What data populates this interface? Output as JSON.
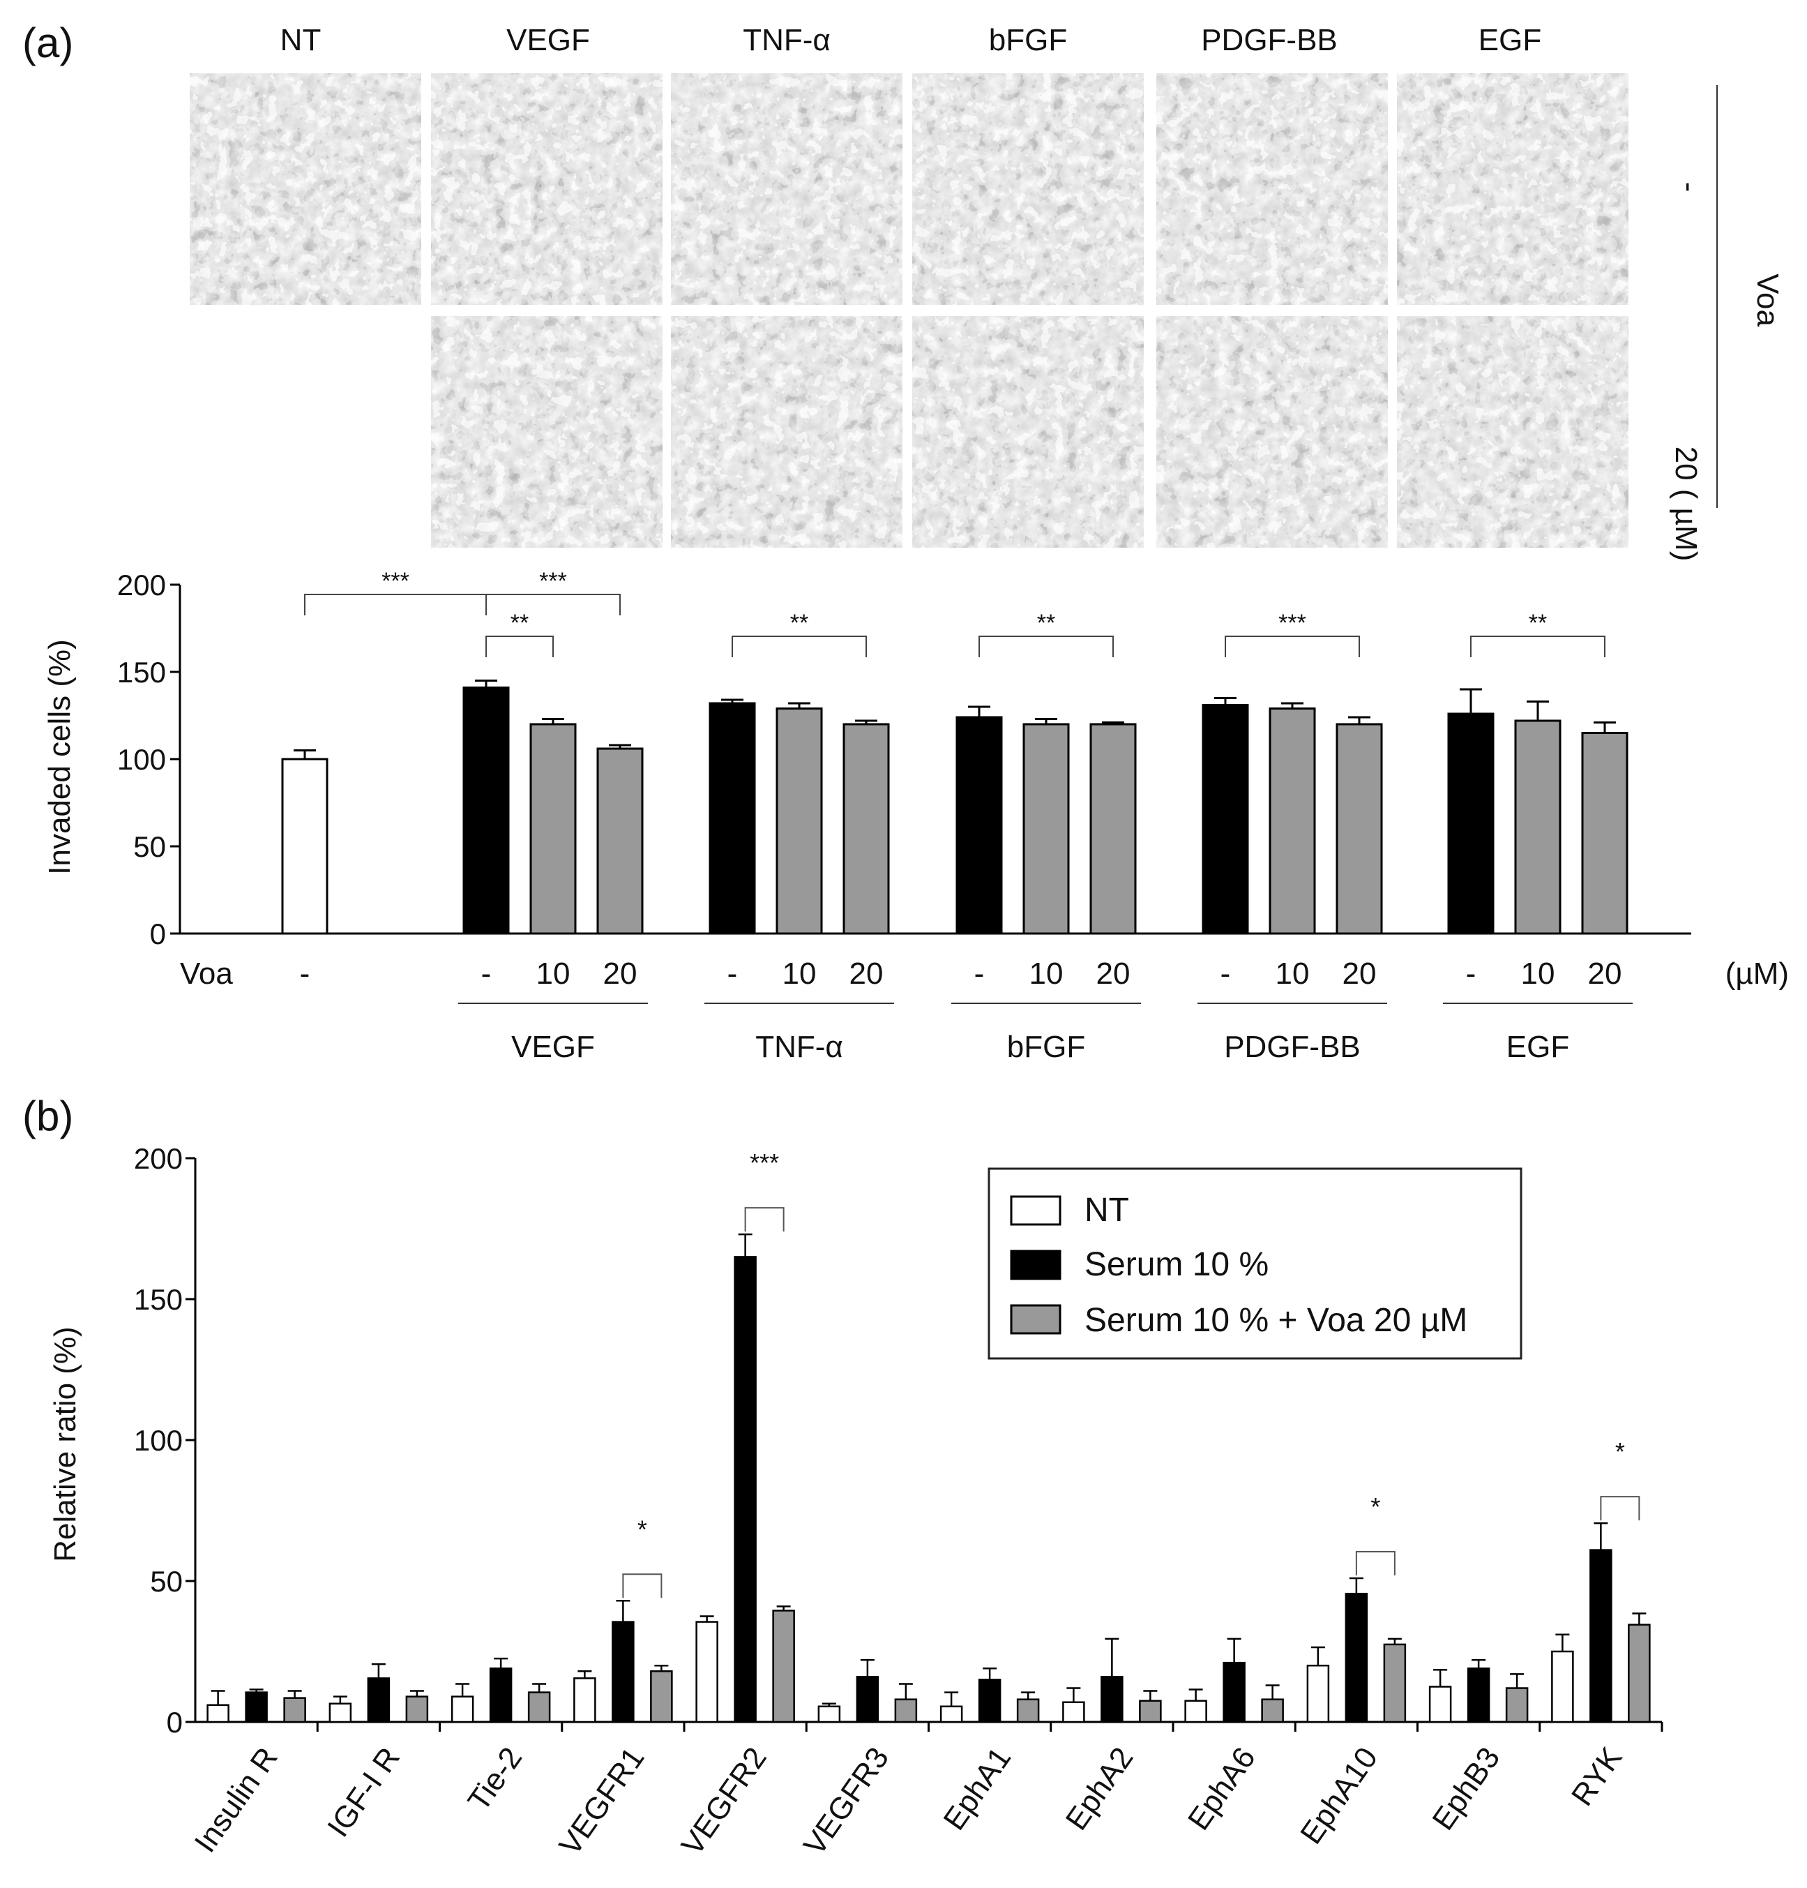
{
  "panel_labels": {
    "a": "(a)",
    "b": "(b)"
  },
  "micrographs": {
    "column_labels": [
      "NT",
      "VEGF",
      "TNF-α",
      "bFGF",
      "PDGF-BB",
      "EGF"
    ],
    "row_labels": [
      "-",
      "20 ( µM)"
    ],
    "side_label": "Voa",
    "image_color": "#8c8c8c"
  },
  "chart_data": [
    {
      "type": "bar",
      "title": "",
      "ylabel": "Invaded cells (%)",
      "ylim": [
        0,
        200
      ],
      "yticks": [
        0,
        50,
        100,
        150,
        200
      ],
      "treatment_label": "Voa",
      "unit_label": "(µM)",
      "groups": [
        {
          "name": "",
          "bars": [
            {
              "dose": "-",
              "value": 100,
              "error": 5,
              "fill": "#ffffff"
            }
          ]
        },
        {
          "name": "VEGF",
          "bars": [
            {
              "dose": "-",
              "value": 141,
              "error": 4,
              "fill": "#000000"
            },
            {
              "dose": "10",
              "value": 120,
              "error": 3,
              "fill": "#999999"
            },
            {
              "dose": "20",
              "value": 106,
              "error": 2,
              "fill": "#999999"
            }
          ]
        },
        {
          "name": "TNF-α",
          "bars": [
            {
              "dose": "-",
              "value": 132,
              "error": 2,
              "fill": "#000000"
            },
            {
              "dose": "10",
              "value": 129,
              "error": 3,
              "fill": "#999999"
            },
            {
              "dose": "20",
              "value": 120,
              "error": 2,
              "fill": "#999999"
            }
          ]
        },
        {
          "name": "bFGF",
          "bars": [
            {
              "dose": "-",
              "value": 124,
              "error": 6,
              "fill": "#000000"
            },
            {
              "dose": "10",
              "value": 120,
              "error": 3,
              "fill": "#999999"
            },
            {
              "dose": "20",
              "value": 120,
              "error": 1,
              "fill": "#999999"
            }
          ]
        },
        {
          "name": "PDGF-BB",
          "bars": [
            {
              "dose": "-",
              "value": 131,
              "error": 4,
              "fill": "#000000"
            },
            {
              "dose": "10",
              "value": 129,
              "error": 3,
              "fill": "#999999"
            },
            {
              "dose": "20",
              "value": 120,
              "error": 4,
              "fill": "#999999"
            }
          ]
        },
        {
          "name": "EGF",
          "bars": [
            {
              "dose": "-",
              "value": 126,
              "error": 14,
              "fill": "#000000"
            },
            {
              "dose": "10",
              "value": 122,
              "error": 11,
              "fill": "#999999"
            },
            {
              "dose": "20",
              "value": 115,
              "error": 6,
              "fill": "#999999"
            }
          ]
        }
      ],
      "significance": [
        {
          "from": [
            0,
            0
          ],
          "to": [
            1,
            0
          ],
          "label": "***"
        },
        {
          "from": [
            1,
            0
          ],
          "to": [
            1,
            2
          ],
          "label": "***"
        },
        {
          "from": [
            1,
            0
          ],
          "to": [
            1,
            1
          ],
          "label": "**"
        },
        {
          "from": [
            2,
            0
          ],
          "to": [
            2,
            2
          ],
          "label": "**"
        },
        {
          "from": [
            3,
            0
          ],
          "to": [
            3,
            2
          ],
          "label": "**"
        },
        {
          "from": [
            4,
            0
          ],
          "to": [
            4,
            2
          ],
          "label": "***"
        },
        {
          "from": [
            5,
            0
          ],
          "to": [
            5,
            2
          ],
          "label": "**"
        }
      ]
    },
    {
      "type": "bar",
      "title": "",
      "ylabel": "Relative ratio (%)",
      "ylim": [
        0,
        200
      ],
      "yticks": [
        0,
        50,
        100,
        150,
        200
      ],
      "categories": [
        "Insulin R",
        "IGF-I R",
        "Tie-2",
        "VEGFR1",
        "VEGFR2",
        "VEGFR3",
        "EphA1",
        "EphA2",
        "EphA6",
        "EphA10",
        "EphB3",
        "RYK"
      ],
      "series": [
        {
          "name": "NT",
          "fill": "#ffffff",
          "values": [
            6,
            6.5,
            9,
            15.5,
            35.5,
            5.5,
            5.5,
            7,
            7.5,
            20,
            12.5,
            25
          ],
          "errors": [
            5,
            2.5,
            4.5,
            2.5,
            2,
            1,
            5,
            5,
            4,
            6.5,
            6,
            6
          ]
        },
        {
          "name": "Serum 10 %",
          "fill": "#000000",
          "values": [
            10.5,
            15.5,
            19,
            35.5,
            165,
            16,
            15,
            16,
            21,
            45.5,
            19,
            61
          ],
          "errors": [
            1,
            5,
            3.5,
            7.5,
            8,
            6,
            4,
            13.5,
            8.5,
            5.5,
            3,
            9.5
          ]
        },
        {
          "name": "Serum 10 % + Voa 20 µM",
          "fill": "#999999",
          "values": [
            8.5,
            9,
            10.5,
            18,
            39.5,
            8,
            8,
            7.5,
            8,
            27.5,
            12,
            34.5
          ],
          "errors": [
            2.5,
            2,
            3,
            2,
            1.5,
            5.5,
            2.5,
            3.5,
            5,
            2,
            5,
            4
          ]
        }
      ],
      "legend_position": "top-right",
      "significance": [
        {
          "category": 3,
          "label": "*"
        },
        {
          "category": 4,
          "label": "***"
        },
        {
          "category": 9,
          "label": "*"
        },
        {
          "category": 11,
          "label": "*"
        }
      ]
    }
  ]
}
